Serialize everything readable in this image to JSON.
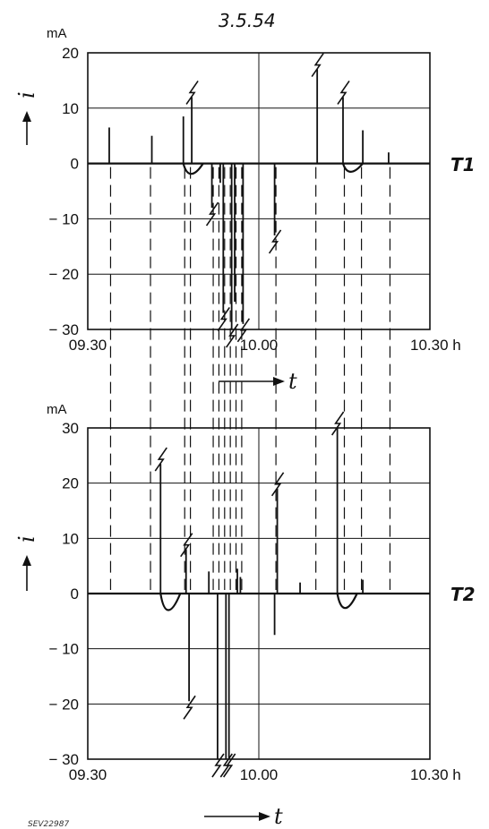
{
  "date_label": "3.5.54",
  "figure_code": "SEV22987",
  "chart_data": [
    {
      "type": "line",
      "panel_label": "T1",
      "ylabel": "i",
      "y_unit": "mA",
      "xlabel": "t",
      "ylim": [
        -30,
        20
      ],
      "yticks": [
        "20",
        "10",
        "0",
        "− 10",
        "− 20",
        "− 30"
      ],
      "ytick_values": [
        20,
        10,
        0,
        -10,
        -20,
        -30
      ],
      "xlim": [
        "09.30",
        "10.30"
      ],
      "xticks": [
        "09.30",
        "10.00",
        "10.30 h"
      ],
      "grid": true,
      "baseline_value": 0,
      "events": [
        {
          "t": "09.34",
          "peak": 6.5
        },
        {
          "t": "09.41",
          "peak": 5.0
        },
        {
          "t": "09.47",
          "peak": 8.5,
          "undershoot": -2.5
        },
        {
          "t": "09.48",
          "peak": 12.0,
          "off_scale": true
        },
        {
          "t": "09.52",
          "peak": -8.0,
          "off_scale": true
        },
        {
          "t": "09.53",
          "peak": -3.5
        },
        {
          "t": "09.54",
          "peak": -27.0,
          "off_scale": true
        },
        {
          "t": "09.55",
          "peak": -31.0,
          "off_scale": true
        },
        {
          "t": "09.56",
          "peak": -25.0
        },
        {
          "t": "09.57",
          "peak": -29.0,
          "off_scale": true
        },
        {
          "t": "10.03",
          "peak": -13.0,
          "off_scale": true
        },
        {
          "t": "10.10",
          "peak": 17.0,
          "off_scale": true
        },
        {
          "t": "10.15",
          "peak": 12.0,
          "off_scale": true,
          "undershoot": -2.0
        },
        {
          "t": "10.18",
          "peak": 6.0
        },
        {
          "t": "10.23",
          "peak": 2.0
        }
      ]
    },
    {
      "type": "line",
      "panel_label": "T2",
      "ylabel": "i",
      "y_unit": "mA",
      "xlabel": "t",
      "ylim": [
        -30,
        30
      ],
      "yticks": [
        "30",
        "20",
        "10",
        "0",
        "− 10",
        "− 20",
        "− 30"
      ],
      "ytick_values": [
        30,
        20,
        10,
        0,
        -10,
        -20,
        -30
      ],
      "xlim": [
        "09.30",
        "10.30"
      ],
      "xticks": [
        "09.30",
        "10.00",
        "10.30 h"
      ],
      "grid": true,
      "baseline_value": 0,
      "events": [
        {
          "t": "09.43",
          "peak": 23.5,
          "off_scale": true,
          "undershoot": -4.0
        },
        {
          "t": "09.47",
          "peak": 8.0,
          "off_scale": true
        },
        {
          "t": "09.48",
          "peak": -19.5,
          "off_scale": true
        },
        {
          "t": "09.51",
          "peak": 4.0
        },
        {
          "t": "09.53",
          "peak": -30.0,
          "off_scale": true
        },
        {
          "t": "09.54",
          "peak": -30.0,
          "off_scale": true
        },
        {
          "t": "09.55",
          "peak": -30.0,
          "off_scale": true
        },
        {
          "t": "09.56",
          "peak": 4.5
        },
        {
          "t": "09.57",
          "peak": 3.0
        },
        {
          "t": "10.03",
          "peak": 19.0,
          "off_scale": true
        },
        {
          "t": "10.03",
          "peak": -7.5
        },
        {
          "t": "10.07",
          "peak": 2.0
        },
        {
          "t": "10.14",
          "peak": 30.0,
          "off_scale": true,
          "undershoot": -3.5
        },
        {
          "t": "10.18",
          "peak": 2.5
        }
      ]
    }
  ]
}
